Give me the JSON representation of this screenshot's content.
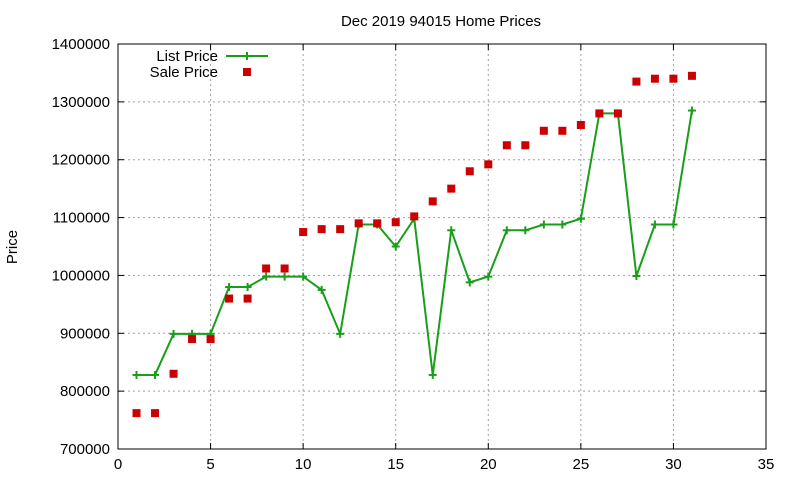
{
  "chart_data": {
    "type": "scatter",
    "title": "Dec 2019 94015 Home Prices",
    "xlabel": "",
    "ylabel": "Price",
    "xlim": [
      0,
      35
    ],
    "ylim": [
      700000,
      1400000
    ],
    "xticks": [
      0,
      5,
      10,
      15,
      20,
      25,
      30,
      35
    ],
    "yticks": [
      700000,
      800000,
      900000,
      1000000,
      1100000,
      1200000,
      1300000,
      1400000
    ],
    "grid": true,
    "legend_position": "top-left",
    "series": [
      {
        "name": "List Price",
        "style": "line-with-plus-markers",
        "color": "#1a9e1a",
        "points": [
          [
            1,
            828000
          ],
          [
            2,
            828000
          ],
          [
            3,
            899000
          ],
          [
            4,
            899000
          ],
          [
            5,
            899000
          ],
          [
            6,
            980000
          ],
          [
            7,
            980000
          ],
          [
            8,
            998000
          ],
          [
            9,
            998000
          ],
          [
            10,
            998000
          ],
          [
            11,
            975000
          ],
          [
            12,
            899000
          ],
          [
            13,
            1088000
          ],
          [
            14,
            1088000
          ],
          [
            15,
            1050000
          ],
          [
            16,
            1098000
          ],
          [
            17,
            828000
          ],
          [
            18,
            1078000
          ],
          [
            19,
            988000
          ],
          [
            20,
            998000
          ],
          [
            21,
            1078000
          ],
          [
            22,
            1078000
          ],
          [
            23,
            1088000
          ],
          [
            24,
            1088000
          ],
          [
            25,
            1098000
          ],
          [
            26,
            1280000
          ],
          [
            27,
            1280000
          ],
          [
            28,
            999000
          ],
          [
            29,
            1088000
          ],
          [
            30,
            1088000
          ],
          [
            31,
            1285000
          ]
        ]
      },
      {
        "name": "Sale Price",
        "style": "square-markers",
        "color": "#cc0000",
        "points": [
          [
            1,
            762000
          ],
          [
            2,
            762000
          ],
          [
            3,
            830000
          ],
          [
            4,
            890000
          ],
          [
            5,
            890000
          ],
          [
            6,
            960000
          ],
          [
            7,
            960000
          ],
          [
            8,
            1012000
          ],
          [
            9,
            1012000
          ],
          [
            10,
            1075000
          ],
          [
            11,
            1080000
          ],
          [
            12,
            1080000
          ],
          [
            13,
            1090000
          ],
          [
            14,
            1090000
          ],
          [
            15,
            1092000
          ],
          [
            16,
            1102000
          ],
          [
            17,
            1128000
          ],
          [
            18,
            1150000
          ],
          [
            19,
            1180000
          ],
          [
            20,
            1192000
          ],
          [
            21,
            1225000
          ],
          [
            22,
            1225000
          ],
          [
            23,
            1250000
          ],
          [
            24,
            1250000
          ],
          [
            25,
            1260000
          ],
          [
            26,
            1280000
          ],
          [
            27,
            1280000
          ],
          [
            28,
            1335000
          ],
          [
            29,
            1340000
          ],
          [
            30,
            1340000
          ],
          [
            31,
            1345000
          ]
        ]
      }
    ]
  }
}
